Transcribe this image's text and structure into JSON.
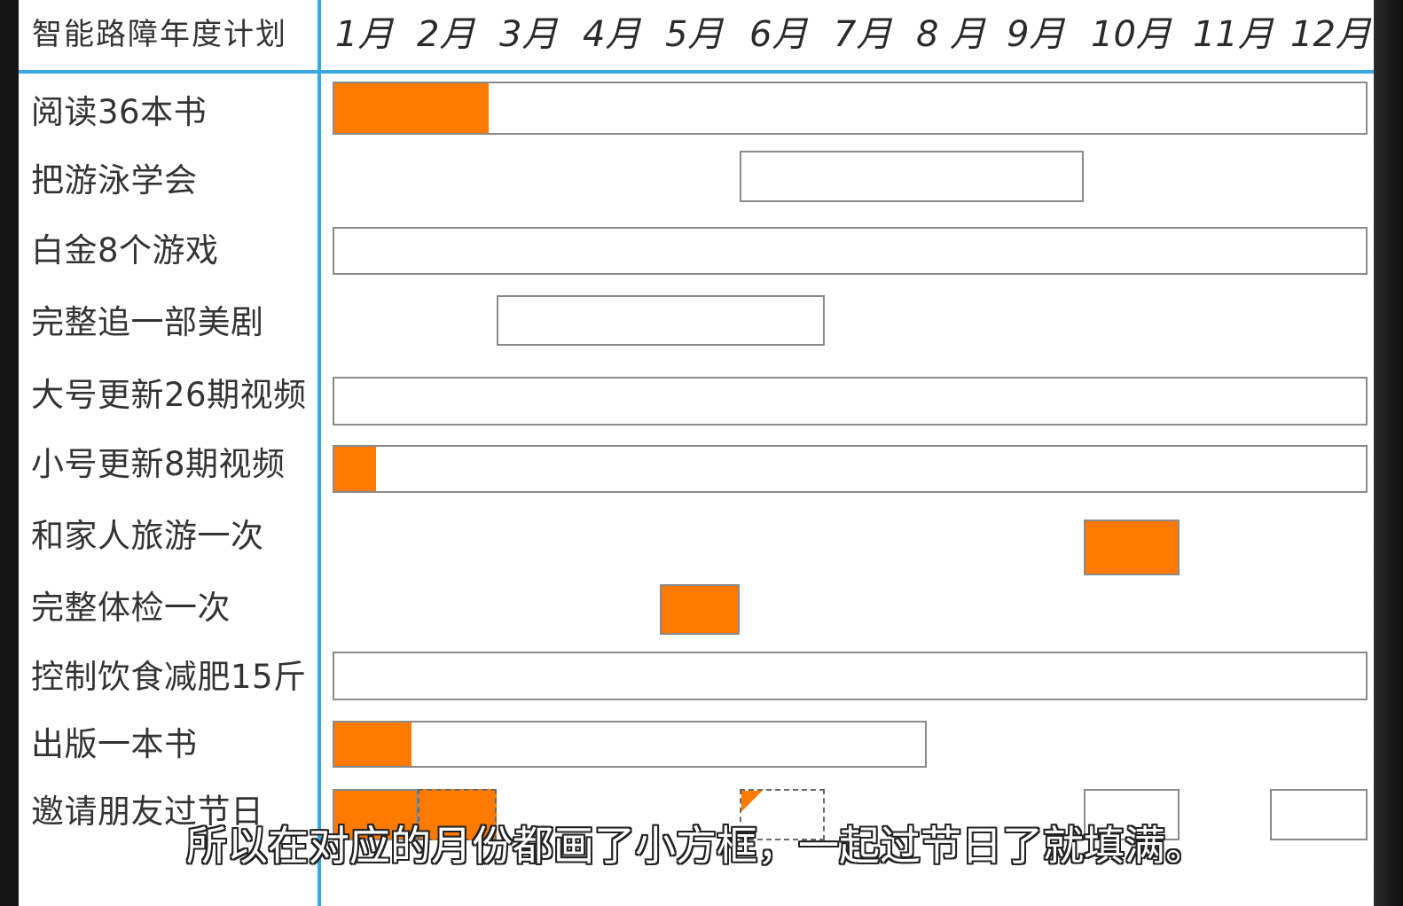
{
  "caption": "所以在对应的月份都画了小方框，一起过节日了就填满。",
  "colors": {
    "frame": "#151515",
    "sheet": "#ffffff",
    "rule": "#38a8e0",
    "fill": "#ff7a00",
    "bar_border": "#8a8a8a",
    "text": "#333333",
    "caption_text": "#ffffff",
    "caption_outline": "#222222"
  },
  "chart_data": {
    "type": "bar",
    "title": "智能路障年度计划",
    "x_ticks": [
      "1月",
      "2月",
      "3月",
      "4月",
      "5月",
      "6月",
      "7月",
      "8 月",
      "9月",
      "10月",
      "11月",
      "12月"
    ],
    "xlim": [
      1,
      12
    ],
    "grid": false,
    "tasks": [
      {
        "label": "阅读36本书",
        "segments": [
          {
            "start": 1,
            "end": 12,
            "progress": 0.15
          }
        ]
      },
      {
        "label": "把游泳学会",
        "segments": [
          {
            "start": 6,
            "end": 9,
            "progress": 0
          }
        ]
      },
      {
        "label": "白金8个游戏",
        "segments": [
          {
            "start": 1,
            "end": 12,
            "progress": 0
          }
        ]
      },
      {
        "label": "完整追一部美剧",
        "segments": [
          {
            "start": 3,
            "end": 6,
            "progress": 0
          }
        ]
      },
      {
        "label": "大号更新26期视频",
        "segments": [
          {
            "start": 1,
            "end": 12,
            "progress": 0
          }
        ]
      },
      {
        "label": "小号更新8期视频",
        "segments": [
          {
            "start": 1,
            "end": 12,
            "progress": 0.04
          }
        ]
      },
      {
        "label": "和家人旅游一次",
        "segments": [
          {
            "start": 10,
            "end": 10,
            "progress": 1
          }
        ]
      },
      {
        "label": "完整体检一次",
        "segments": [
          {
            "start": 5,
            "end": 5,
            "progress": 1
          }
        ]
      },
      {
        "label": "控制饮食减肥15斤",
        "segments": [
          {
            "start": 1,
            "end": 12,
            "progress": 0
          }
        ]
      },
      {
        "label": "出版一本书",
        "segments": [
          {
            "start": 1,
            "end": 7,
            "progress": 0.13
          }
        ]
      },
      {
        "label": "邀请朋友过节日",
        "segments": [
          {
            "start": 1,
            "end": 1,
            "progress": 1
          },
          {
            "start": 2,
            "end": 2,
            "progress": 1,
            "dashed": true
          },
          {
            "start": 6,
            "end": 6,
            "progress": 0.05,
            "dashed": true
          },
          {
            "start": 10,
            "end": 10,
            "progress": 0
          },
          {
            "start": 12,
            "end": 12,
            "progress": 0
          }
        ]
      }
    ]
  }
}
